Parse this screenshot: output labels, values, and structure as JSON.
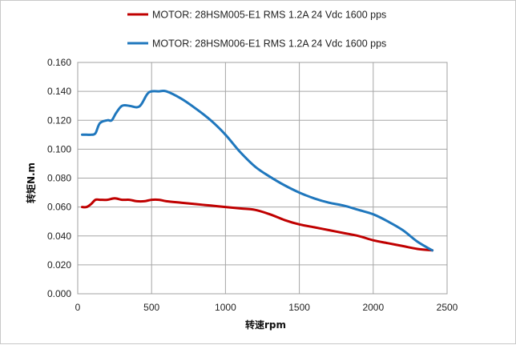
{
  "chart_data": {
    "type": "line",
    "title": "",
    "xlabel": "转速rpm",
    "ylabel": "转矩N.m",
    "xlim": [
      0,
      2500
    ],
    "ylim": [
      0,
      0.16
    ],
    "xticks": [
      "0",
      "500",
      "1000",
      "1500",
      "2000",
      "2500"
    ],
    "yticks": [
      "0.000",
      "0.020",
      "0.040",
      "0.060",
      "0.080",
      "0.100",
      "0.120",
      "0.140",
      "0.160"
    ],
    "grid": true,
    "legend_position": "top",
    "series": [
      {
        "name": "MOTOR: 28HSM005-E1  RMS 1.2A 24 Vdc  1600 pps",
        "color": "#c00000",
        "x": [
          30,
          60,
          90,
          120,
          150,
          200,
          250,
          300,
          350,
          400,
          450,
          500,
          550,
          600,
          700,
          800,
          900,
          1000,
          1100,
          1200,
          1300,
          1400,
          1500,
          1600,
          1700,
          1800,
          1900,
          2000,
          2100,
          2200,
          2300,
          2400
        ],
        "y": [
          0.06,
          0.06,
          0.062,
          0.065,
          0.065,
          0.065,
          0.066,
          0.065,
          0.065,
          0.064,
          0.064,
          0.065,
          0.065,
          0.064,
          0.063,
          0.062,
          0.061,
          0.06,
          0.059,
          0.058,
          0.055,
          0.051,
          0.048,
          0.046,
          0.044,
          0.042,
          0.04,
          0.037,
          0.035,
          0.033,
          0.031,
          0.03
        ]
      },
      {
        "name": "MOTOR: 28HSM006-E1  RMS 1.2A 24 Vdc  1600 pps",
        "color": "#1f77bd",
        "x": [
          30,
          60,
          90,
          120,
          150,
          200,
          230,
          260,
          300,
          350,
          400,
          430,
          470,
          500,
          550,
          600,
          700,
          800,
          900,
          1000,
          1100,
          1200,
          1300,
          1400,
          1500,
          1600,
          1700,
          1800,
          1900,
          2000,
          2100,
          2200,
          2300,
          2400
        ],
        "y": [
          0.11,
          0.11,
          0.11,
          0.111,
          0.118,
          0.12,
          0.12,
          0.125,
          0.13,
          0.13,
          0.129,
          0.131,
          0.138,
          0.14,
          0.14,
          0.14,
          0.135,
          0.128,
          0.12,
          0.11,
          0.098,
          0.088,
          0.081,
          0.075,
          0.07,
          0.066,
          0.063,
          0.061,
          0.058,
          0.055,
          0.05,
          0.044,
          0.036,
          0.03
        ]
      }
    ]
  }
}
